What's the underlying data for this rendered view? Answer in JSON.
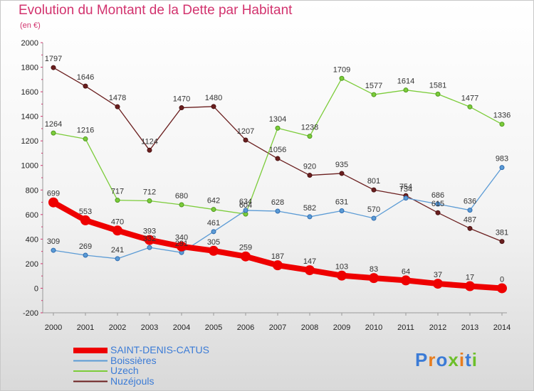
{
  "title": "Evolution du Montant de la Dette par Habitant",
  "unit": "(en €)",
  "logo": {
    "text": "Proxiti",
    "colors": [
      "#3b7bd6",
      "#e87d1e",
      "#3b7bd6",
      "#6cbf2a",
      "#e87d1e",
      "#3b7bd6",
      "#6cbf2a"
    ]
  },
  "chart_data": {
    "type": "line",
    "x": [
      2000,
      2001,
      2002,
      2003,
      2004,
      2005,
      2006,
      2007,
      2008,
      2009,
      2010,
      2011,
      2012,
      2013,
      2014
    ],
    "ylim": [
      -200,
      2000
    ],
    "yticks": [
      -200,
      0,
      200,
      400,
      600,
      800,
      1000,
      1200,
      1400,
      1600,
      1800,
      2000
    ],
    "grid": false,
    "legend_position": "bottom-left",
    "series": [
      {
        "name": "Nuzéjouls",
        "color": "#6b1f1f",
        "values": [
          1797,
          1646,
          1478,
          1124,
          1470,
          1480,
          1207,
          1056,
          920,
          935,
          801,
          754,
          615,
          487,
          381
        ]
      },
      {
        "name": "Uzech",
        "color": "#7ccc3a",
        "values": [
          1264,
          1216,
          717,
          712,
          680,
          642,
          604,
          1304,
          1238,
          1709,
          1577,
          1614,
          1581,
          1477,
          1336
        ]
      },
      {
        "name": "Boissières",
        "color": "#5b9bd5",
        "values": [
          309,
          269,
          241,
          332,
          291,
          461,
          634,
          628,
          582,
          631,
          570,
          734,
          686,
          636,
          983
        ]
      },
      {
        "name": "SAINT-DENIS-CATUS",
        "color": "#ee0000",
        "values": [
          699,
          553,
          470,
          393,
          340,
          305,
          259,
          187,
          147,
          103,
          83,
          64,
          37,
          17,
          0
        ]
      }
    ],
    "data_labels": {
      "Nuzéjouls": [
        "1797",
        "1646",
        "1478",
        "1124",
        "1470",
        "1480",
        "1207",
        "1056",
        "920",
        "935",
        "801",
        "754",
        "615",
        "487",
        "381"
      ],
      "Uzech": [
        "1264",
        "1216",
        "717",
        "712",
        "680",
        "642",
        "604",
        "1304",
        "1238",
        "1709",
        "1577",
        "1614",
        "1581",
        "1477",
        "1336"
      ],
      "Boissières": [
        "309",
        "269",
        "241",
        "332",
        "291",
        "461",
        "634",
        "628",
        "582",
        "631",
        "570",
        "734",
        "686",
        "636",
        "983"
      ],
      "SAINT-DENIS-CATUS": [
        "699",
        "553",
        "470",
        "393",
        "340",
        "305",
        "259",
        "187",
        "147",
        "103",
        "83",
        "64",
        "37",
        "17",
        "0"
      ]
    },
    "legend_order": [
      "SAINT-DENIS-CATUS",
      "Boissières",
      "Uzech",
      "Nuzéjouls"
    ]
  }
}
